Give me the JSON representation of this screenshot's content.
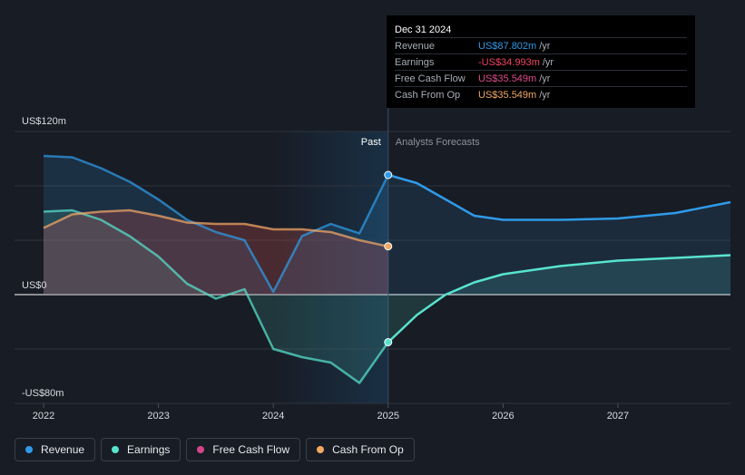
{
  "tooltip": {
    "date": "Dec 31 2024",
    "rows": [
      {
        "name": "Revenue",
        "value": "US$87.802m",
        "unit": "/yr",
        "color": "#2f9be8"
      },
      {
        "name": "Earnings",
        "value": "-US$34.993m",
        "unit": "/yr",
        "color": "#f0445f"
      },
      {
        "name": "Free Cash Flow",
        "value": "US$35.549m",
        "unit": "/yr",
        "color": "#e04b8b"
      },
      {
        "name": "Cash From Op",
        "value": "US$35.549m",
        "unit": "/yr",
        "color": "#f2a865"
      }
    ]
  },
  "legend": [
    {
      "label": "Revenue",
      "color": "#2f9be8"
    },
    {
      "label": "Earnings",
      "color": "#58e3cf"
    },
    {
      "label": "Free Cash Flow",
      "color": "#d4468a"
    },
    {
      "label": "Cash From Op",
      "color": "#f2a865"
    }
  ],
  "chart_data": {
    "type": "line",
    "y_tick_labels": {
      "top": "US$120m",
      "zero": "US$0",
      "bottom": "-US$80m"
    },
    "ylim": [
      -80,
      120
    ],
    "xlim": [
      2022,
      2027.98
    ],
    "x_tick_labels": [
      "2022",
      "2023",
      "2024",
      "2025",
      "2026",
      "2027"
    ],
    "x_ticks": [
      2022,
      2023,
      2024,
      2025,
      2026,
      2027
    ],
    "past_label": "Past",
    "forecast_label": "Analysts Forecasts",
    "forecast_start": 2025,
    "series": [
      {
        "name": "Revenue",
        "color": "#2f9be8",
        "points": [
          [
            2022.0,
            102
          ],
          [
            2022.25,
            101
          ],
          [
            2022.5,
            93
          ],
          [
            2022.75,
            83
          ],
          [
            2023.0,
            70
          ],
          [
            2023.25,
            55
          ],
          [
            2023.5,
            46
          ],
          [
            2023.75,
            40
          ],
          [
            2024.0,
            2
          ],
          [
            2024.25,
            43
          ],
          [
            2024.5,
            52
          ],
          [
            2024.75,
            45
          ],
          [
            2025.0,
            88
          ]
        ],
        "forecast": [
          [
            2025.0,
            88
          ],
          [
            2025.25,
            82
          ],
          [
            2025.5,
            70
          ],
          [
            2025.75,
            58
          ],
          [
            2026.0,
            55
          ],
          [
            2026.5,
            55
          ],
          [
            2027.0,
            56
          ],
          [
            2027.5,
            60
          ],
          [
            2027.98,
            68
          ]
        ]
      },
      {
        "name": "Earnings",
        "color": "#58e3cf",
        "points": [
          [
            2022.0,
            61
          ],
          [
            2022.25,
            62
          ],
          [
            2022.5,
            55
          ],
          [
            2022.75,
            43
          ],
          [
            2023.0,
            28
          ],
          [
            2023.25,
            8
          ],
          [
            2023.5,
            -3
          ],
          [
            2023.75,
            4
          ],
          [
            2024.0,
            -40
          ],
          [
            2024.25,
            -46
          ],
          [
            2024.5,
            -50
          ],
          [
            2024.75,
            -65
          ],
          [
            2025.0,
            -35
          ]
        ],
        "forecast": [
          [
            2025.0,
            -35
          ],
          [
            2025.25,
            -15
          ],
          [
            2025.5,
            0
          ],
          [
            2025.75,
            9
          ],
          [
            2026.0,
            15
          ],
          [
            2026.5,
            21
          ],
          [
            2027.0,
            25
          ],
          [
            2027.5,
            27
          ],
          [
            2027.98,
            29
          ]
        ]
      },
      {
        "name": "Cash From Op",
        "color": "#f2a865",
        "points": [
          [
            2022.0,
            49
          ],
          [
            2022.25,
            59
          ],
          [
            2022.5,
            61
          ],
          [
            2022.75,
            62
          ],
          [
            2023.0,
            58
          ],
          [
            2023.25,
            53
          ],
          [
            2023.5,
            52
          ],
          [
            2023.75,
            52
          ],
          [
            2024.0,
            48
          ],
          [
            2024.25,
            48
          ],
          [
            2024.5,
            46
          ],
          [
            2024.75,
            40
          ],
          [
            2025.0,
            35.5
          ]
        ],
        "forecast": []
      }
    ],
    "highlight_points": [
      {
        "series": "Revenue",
        "x": 2025.0,
        "y": 88
      },
      {
        "series": "Earnings",
        "x": 2025.0,
        "y": -35
      },
      {
        "series": "Cash From Op",
        "x": 2025.0,
        "y": 35.5
      }
    ]
  }
}
